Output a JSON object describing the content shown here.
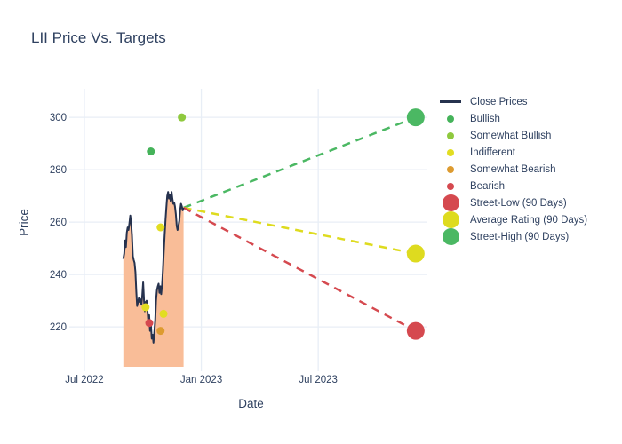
{
  "title": "LII Price Vs. Targets",
  "axes": {
    "x_label": "Date",
    "y_label": "Price",
    "x_unit": "months since 2022-07-01",
    "x_ticks": [
      {
        "months": 0,
        "label": "Jul 2022"
      },
      {
        "months": 6,
        "label": "Jan 2023"
      },
      {
        "months": 12,
        "label": "Jul 2023"
      }
    ],
    "y_ticks": [
      220,
      240,
      260,
      280,
      300
    ]
  },
  "colors": {
    "text": "#2f4160",
    "grid": "#e8eef6",
    "close_line": "#26324e",
    "close_fill": "#f9bd98",
    "bullish": "#45b35a",
    "somewhat_bullish": "#8fc93e",
    "indifferent": "#e2dd21",
    "somewhat_bearish": "#dd9b30",
    "bearish": "#d5494f",
    "street_low": "#d5494f",
    "average_rating": "#dedb1f",
    "street_high": "#4bb863"
  },
  "chart_data": {
    "type": "line",
    "title": "LII Price Vs. Targets",
    "xlabel": "Date",
    "ylabel": "Price",
    "x_unit": "months since 2022-07-01",
    "x_range_months": [
      -0.5,
      17.6
    ],
    "y_range": [
      204.8,
      310.9
    ],
    "grid": true,
    "legend_position": "right",
    "close_prices": {
      "name": "Close Prices",
      "x_start": 2.0,
      "x_end": 5.09,
      "prices": [
        246,
        248,
        253,
        250.5,
        256,
        258,
        257,
        259.5,
        262.5,
        260,
        255,
        247,
        245.5,
        244.5,
        241,
        233.5,
        228,
        229.5,
        231,
        229.5,
        230.5,
        228.5,
        232,
        237,
        230,
        226,
        229.5,
        230,
        226.5,
        222,
        224.5,
        218.5,
        221,
        215.5,
        217,
        214,
        218,
        222.5,
        230,
        234,
        235.5,
        236.5,
        233,
        235.5,
        232.5,
        236,
        242,
        248.5,
        255,
        261,
        265.5,
        270,
        271.5,
        269,
        270.5,
        268,
        271.5,
        269,
        267,
        267.5,
        266,
        263,
        258.5,
        257,
        258.5,
        260.5,
        264.5,
        267,
        266,
        264.5,
        265.5
      ]
    },
    "ratings": [
      {
        "name": "Bullish",
        "color_key": "bullish",
        "points": [
          {
            "x": 3.41,
            "y": 287
          }
        ]
      },
      {
        "name": "Somewhat Bullish",
        "color_key": "somewhat_bullish",
        "points": [
          {
            "x": 5.0,
            "y": 300
          }
        ]
      },
      {
        "name": "Indifferent",
        "color_key": "indifferent",
        "points": [
          {
            "x": 3.14,
            "y": 227.5
          },
          {
            "x": 3.91,
            "y": 258
          },
          {
            "x": 4.06,
            "y": 225
          }
        ]
      },
      {
        "name": "Somewhat Bearish",
        "color_key": "somewhat_bearish",
        "points": [
          {
            "x": 3.91,
            "y": 218.5
          }
        ]
      },
      {
        "name": "Bearish",
        "color_key": "bearish",
        "points": [
          {
            "x": 3.33,
            "y": 221.5
          }
        ]
      }
    ],
    "projection_origin": {
      "x": 5.09,
      "y": 265.5
    },
    "targets": [
      {
        "name": "Street-High (90 Days)",
        "color_key": "street_high",
        "point": {
          "x": 17.0,
          "y": 300
        }
      },
      {
        "name": "Average Rating (90 Days)",
        "color_key": "average_rating",
        "point": {
          "x": 17.0,
          "y": 248
        }
      },
      {
        "name": "Street-Low (90 Days)",
        "color_key": "street_low",
        "point": {
          "x": 17.0,
          "y": 218.5
        }
      }
    ]
  },
  "legend": {
    "items": [
      {
        "label": "Close Prices",
        "marker": "line",
        "color_key": "close_line",
        "slug": "close-prices"
      },
      {
        "label": "Bullish",
        "marker": "dot",
        "color_key": "bullish",
        "slug": "bullish"
      },
      {
        "label": "Somewhat Bullish",
        "marker": "dot",
        "color_key": "somewhat_bullish",
        "slug": "somewhat-bullish"
      },
      {
        "label": "Indifferent",
        "marker": "dot",
        "color_key": "indifferent",
        "slug": "indifferent"
      },
      {
        "label": "Somewhat Bearish",
        "marker": "dot",
        "color_key": "somewhat_bearish",
        "slug": "somewhat-bearish"
      },
      {
        "label": "Bearish",
        "marker": "dot",
        "color_key": "bearish",
        "slug": "bearish"
      },
      {
        "label": "Street-Low (90 Days)",
        "marker": "dot-lg",
        "color_key": "street_low",
        "slug": "street-low"
      },
      {
        "label": "Average Rating (90 Days)",
        "marker": "dot-lg",
        "color_key": "average_rating",
        "slug": "average-rating"
      },
      {
        "label": "Street-High (90 Days)",
        "marker": "dot-lg",
        "color_key": "street_high",
        "slug": "street-high"
      }
    ]
  }
}
